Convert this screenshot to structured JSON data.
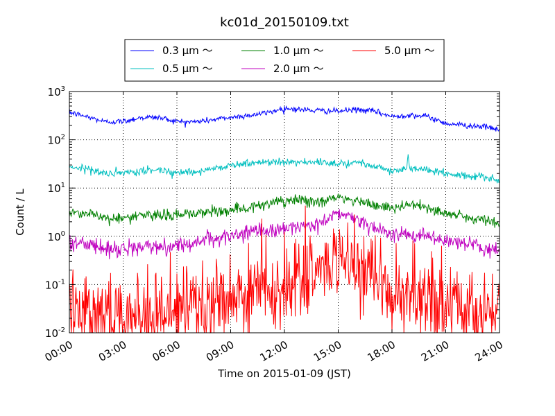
{
  "chart_data": {
    "type": "line",
    "title": "kc01d_20150109.txt",
    "xlabel": "Time on 2015-01-09 (JST)",
    "ylabel": "Count / L",
    "y_scale": "log",
    "ylim": [
      0.01,
      1000
    ],
    "xlim": [
      "00:00",
      "24:00"
    ],
    "grid": true,
    "legend_position": "top-center",
    "x_ticks": [
      "00:00",
      "03:00",
      "06:00",
      "09:00",
      "12:00",
      "15:00",
      "18:00",
      "21:00",
      "24:00"
    ],
    "y_ticks": [
      {
        "base": "10",
        "exp": "-2"
      },
      {
        "base": "10",
        "exp": "-1"
      },
      {
        "base": "10",
        "exp": "0"
      },
      {
        "base": "10",
        "exp": "1"
      },
      {
        "base": "10",
        "exp": "2"
      },
      {
        "base": "10",
        "exp": "3"
      }
    ],
    "x_hours": [
      0,
      1,
      2,
      3,
      4,
      5,
      6,
      7,
      8,
      9,
      10,
      11,
      12,
      13,
      14,
      15,
      16,
      17,
      18,
      19,
      20,
      21,
      22,
      23,
      24
    ],
    "series": [
      {
        "name": "0.3 μm ～",
        "color": "#0000ff",
        "values": [
          370,
          300,
          235,
          240,
          290,
          290,
          240,
          235,
          260,
          290,
          320,
          360,
          450,
          420,
          400,
          390,
          420,
          390,
          300,
          330,
          300,
          220,
          200,
          190,
          160
        ],
        "noise": 0.03
      },
      {
        "name": "0.5 μm ～",
        "color": "#00bfbf",
        "values": [
          28,
          25,
          20,
          20,
          22,
          24,
          21,
          22,
          25,
          30,
          32,
          35,
          36,
          34,
          33,
          33,
          34,
          30,
          22,
          25,
          24,
          20,
          18,
          17,
          14
        ],
        "noise": 0.04,
        "spike_hour": 18.9,
        "spike_value": 50
      },
      {
        "name": "1.0 μm ～",
        "color": "#008000",
        "values": [
          3.2,
          3.0,
          2.4,
          2.4,
          2.6,
          2.8,
          2.7,
          3.0,
          3.2,
          3.6,
          4.0,
          4.5,
          5.3,
          5.5,
          5.2,
          6.5,
          5.2,
          4.5,
          3.8,
          4.5,
          4.0,
          3.0,
          2.5,
          2.2,
          1.8
        ],
        "noise": 0.06
      },
      {
        "name": "2.0 μm ～",
        "color": "#bf00bf",
        "values": [
          0.75,
          0.7,
          0.55,
          0.55,
          0.6,
          0.6,
          0.65,
          0.75,
          0.9,
          1.0,
          1.2,
          1.3,
          1.5,
          1.6,
          1.8,
          3.0,
          2.4,
          1.6,
          1.1,
          1.0,
          1.0,
          0.8,
          0.7,
          0.6,
          0.5
        ],
        "noise": 0.08
      },
      {
        "name": "5.0 μm ～",
        "color": "#ff0000",
        "values": [
          0.04,
          0.035,
          0.03,
          0.025,
          0.025,
          0.025,
          0.025,
          0.03,
          0.035,
          0.05,
          0.07,
          0.09,
          0.1,
          0.12,
          0.2,
          0.35,
          0.2,
          0.1,
          0.06,
          0.05,
          0.045,
          0.04,
          0.035,
          0.03,
          0.025
        ],
        "noise": 0.45
      }
    ]
  }
}
